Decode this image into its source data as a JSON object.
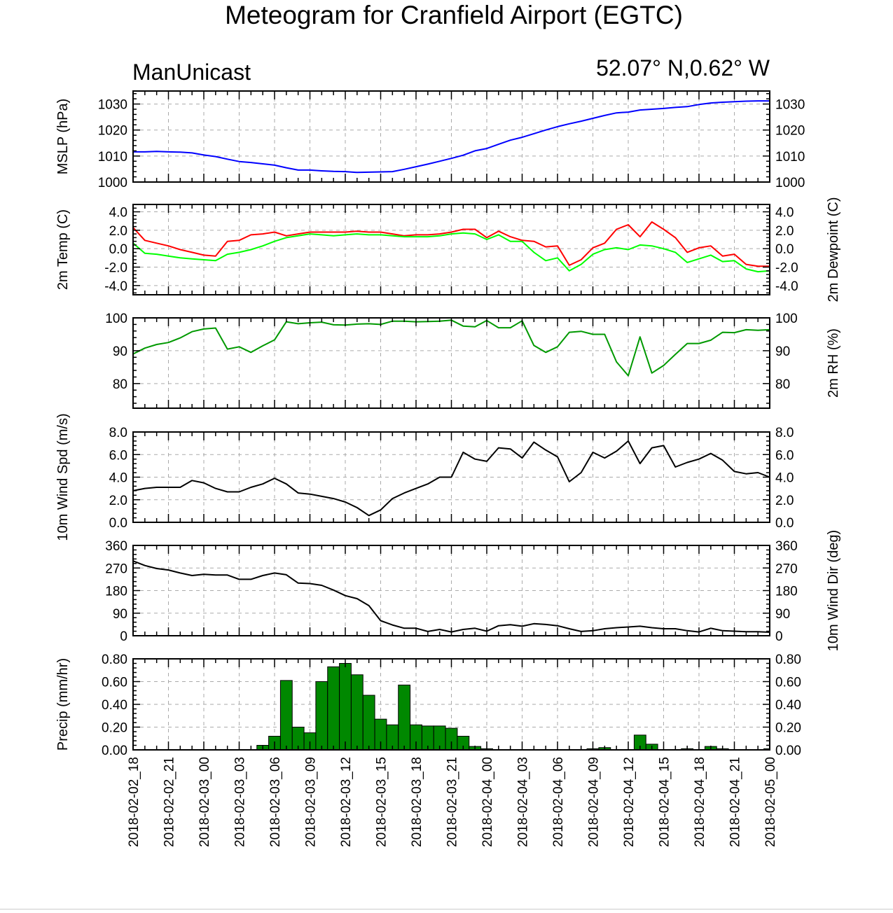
{
  "title": "Meteogram for Cranfield Airport (EGTC)",
  "model_label": "ManUnicast",
  "location_label": "52.07° N,0.62° W",
  "time_labels": [
    "2018-02-02_18",
    "2018-02-02_21",
    "2018-02-03_00",
    "2018-02-03_03",
    "2018-02-03_06",
    "2018-02-03_09",
    "2018-02-03_12",
    "2018-02-03_15",
    "2018-02-03_18",
    "2018-02-03_21",
    "2018-02-04_00",
    "2018-02-04_03",
    "2018-02-04_06",
    "2018-02-04_09",
    "2018-02-04_12",
    "2018-02-04_15",
    "2018-02-04_18",
    "2018-02-04_21",
    "2018-02-05_00"
  ],
  "colors": {
    "mslp": "#0000ff",
    "temp": "#ff0000",
    "dewpoint": "#00ff00",
    "rh": "#009900",
    "wind": "#000000",
    "precip_fill": "#008800",
    "grid": "#aaaaaa"
  },
  "chart_data": [
    {
      "type": "line",
      "panel": "mslp",
      "ylabel": "MSLP (hPa)",
      "ylabel_right": "",
      "ylim": [
        1000,
        1035
      ],
      "yticks": [
        1000,
        1010,
        1020,
        1030
      ],
      "ytick_labels": [
        "1000",
        "1010",
        "1020",
        "1030"
      ],
      "grid": true,
      "series": [
        {
          "color": "#0000ff",
          "values": [
            1011.6,
            1011.6,
            1011.8,
            1011.6,
            1011.5,
            1011.2,
            1010.4,
            1009.8,
            1008.8,
            1007.9,
            1007.5,
            1007.0,
            1006.5,
            1005.5,
            1004.6,
            1004.6,
            1004.3,
            1004.1,
            1004.0,
            1003.7,
            1003.8,
            1003.9,
            1004.0,
            1004.9,
            1005.9,
            1006.9,
            1008.0,
            1009.1,
            1010.3,
            1012.0,
            1012.9,
            1014.5,
            1016.1,
            1017.2,
            1018.6,
            1020.0,
            1021.3,
            1022.4,
            1023.4,
            1024.5,
            1025.6,
            1026.6,
            1026.9,
            1027.7,
            1028.0,
            1028.3,
            1028.7,
            1029.0,
            1029.8,
            1030.4,
            1030.7,
            1030.9,
            1031.1,
            1031.2,
            1031.2
          ]
        }
      ]
    },
    {
      "type": "line",
      "panel": "temperature",
      "ylabel": "2m Temp (C)",
      "ylabel_right": "2m Dewpoint (C)",
      "ylim": [
        -5,
        4.8
      ],
      "yticks": [
        -4,
        -2,
        0,
        2,
        4
      ],
      "ytick_labels": [
        "-4.0",
        "-2.0",
        "0.0",
        "2.0",
        "4.0"
      ],
      "grid": true,
      "series": [
        {
          "color": "#ff0000",
          "values": [
            2.3,
            0.9,
            0.6,
            0.3,
            -0.1,
            -0.4,
            -0.7,
            -0.8,
            0.8,
            0.9,
            1.5,
            1.6,
            1.8,
            1.4,
            1.6,
            1.8,
            1.8,
            1.8,
            1.8,
            1.9,
            1.8,
            1.8,
            1.6,
            1.4,
            1.5,
            1.5,
            1.6,
            1.8,
            2.1,
            2.1,
            1.2,
            1.9,
            1.3,
            0.9,
            0.8,
            0.2,
            0.3,
            -1.8,
            -1.2,
            0.1,
            0.6,
            2.1,
            2.6,
            1.3,
            2.9,
            2.1,
            1.2,
            -0.4,
            0.1,
            0.3,
            -0.8,
            -0.6,
            -1.7,
            -1.9,
            -1.9
          ]
        },
        {
          "color": "#00ff00",
          "values": [
            0.6,
            -0.5,
            -0.6,
            -0.8,
            -1.0,
            -1.1,
            -1.2,
            -1.3,
            -0.6,
            -0.4,
            -0.1,
            0.3,
            0.8,
            1.2,
            1.4,
            1.6,
            1.5,
            1.4,
            1.5,
            1.6,
            1.5,
            1.5,
            1.4,
            1.3,
            1.3,
            1.3,
            1.4,
            1.6,
            1.7,
            1.6,
            1.0,
            1.5,
            0.8,
            0.8,
            -0.4,
            -1.3,
            -1.0,
            -2.4,
            -1.7,
            -0.6,
            -0.1,
            0.1,
            -0.1,
            0.4,
            0.3,
            0.0,
            -0.4,
            -1.5,
            -1.1,
            -0.7,
            -1.4,
            -1.3,
            -2.2,
            -2.5,
            -2.4
          ]
        }
      ]
    },
    {
      "type": "line",
      "panel": "rh",
      "ylabel": "",
      "ylabel_right": "2m RH (%)",
      "ylim": [
        72.5,
        100
      ],
      "yticks": [
        80,
        90,
        100
      ],
      "ytick_labels": [
        "80",
        "90",
        "100"
      ],
      "grid": true,
      "series": [
        {
          "color": "#009900",
          "values": [
            89.0,
            90.8,
            91.9,
            92.5,
            93.9,
            95.8,
            96.6,
            96.9,
            90.5,
            91.2,
            89.5,
            91.5,
            93.3,
            98.8,
            98.2,
            98.5,
            98.7,
            97.9,
            97.8,
            98.1,
            98.2,
            98.0,
            99.0,
            99.0,
            98.8,
            98.9,
            99.0,
            99.3,
            97.5,
            97.3,
            99.2,
            97.0,
            97.0,
            99.1,
            91.6,
            89.5,
            91.2,
            95.6,
            95.9,
            95.0,
            95.0,
            86.6,
            82.4,
            94.2,
            83.2,
            85.5,
            88.9,
            92.2,
            92.2,
            93.2,
            95.6,
            95.5,
            96.4,
            96.2,
            96.4
          ]
        }
      ]
    },
    {
      "type": "line",
      "panel": "wind_speed",
      "ylabel": "10m Wind Spd (m/s)",
      "ylabel_right": "",
      "ylim": [
        0,
        8
      ],
      "yticks": [
        0,
        2,
        4,
        6,
        8
      ],
      "ytick_labels": [
        "0.0",
        "2.0",
        "4.0",
        "6.0",
        "8.0"
      ],
      "grid": true,
      "series": [
        {
          "color": "#000000",
          "values": [
            2.8,
            3.0,
            3.1,
            3.1,
            3.1,
            3.7,
            3.5,
            3.0,
            2.7,
            2.7,
            3.1,
            3.4,
            3.9,
            3.4,
            2.6,
            2.5,
            2.3,
            2.1,
            1.8,
            1.3,
            0.6,
            1.1,
            2.1,
            2.6,
            3.0,
            3.4,
            4.0,
            4.0,
            6.2,
            5.6,
            5.4,
            6.6,
            6.5,
            5.7,
            7.1,
            6.4,
            5.8,
            3.6,
            4.4,
            6.2,
            5.7,
            6.3,
            7.2,
            5.2,
            6.6,
            6.8,
            4.9,
            5.3,
            5.6,
            6.1,
            5.5,
            4.5,
            4.3,
            4.4,
            4.0
          ]
        }
      ]
    },
    {
      "type": "line",
      "panel": "wind_direction",
      "ylabel": "",
      "ylabel_right": "10m Wind Dir (deg)",
      "ylim": [
        0,
        360
      ],
      "yticks": [
        0,
        90,
        180,
        270,
        360
      ],
      "ytick_labels": [
        "0",
        "90",
        "180",
        "270",
        "360"
      ],
      "grid": true,
      "series": [
        {
          "color": "#000000",
          "values": [
            298,
            280,
            268,
            262,
            250,
            240,
            245,
            242,
            242,
            225,
            225,
            240,
            250,
            243,
            210,
            208,
            201,
            182,
            160,
            148,
            120,
            60,
            43,
            30,
            30,
            17,
            25,
            15,
            25,
            30,
            18,
            40,
            44,
            38,
            48,
            45,
            40,
            28,
            17,
            20,
            28,
            32,
            35,
            38,
            32,
            28,
            28,
            20,
            15,
            30,
            20,
            18,
            16,
            16,
            14
          ]
        }
      ]
    },
    {
      "type": "bar",
      "panel": "precip",
      "ylabel": "Precip (mm/hr)",
      "ylabel_right": "",
      "ylim": [
        0,
        0.8
      ],
      "yticks": [
        0,
        0.2,
        0.4,
        0.6,
        0.8
      ],
      "ytick_labels": [
        "0.00",
        "0.20",
        "0.40",
        "0.60",
        "0.80"
      ],
      "grid": true,
      "series": [
        {
          "color": "#008800",
          "values": [
            0,
            0,
            0,
            0,
            0,
            0,
            0,
            0,
            0,
            0,
            0,
            0.04,
            0.12,
            0.61,
            0.2,
            0.15,
            0.6,
            0.73,
            0.76,
            0.66,
            0.48,
            0.27,
            0.22,
            0.57,
            0.22,
            0.21,
            0.21,
            0.19,
            0.12,
            0.03,
            0.01,
            0,
            0,
            0,
            0,
            0,
            0,
            0,
            0,
            0.01,
            0.02,
            0,
            0,
            0.13,
            0.05,
            0,
            0,
            0.01,
            0,
            0.03,
            0.01,
            0,
            0,
            0,
            0.01
          ]
        }
      ]
    }
  ]
}
